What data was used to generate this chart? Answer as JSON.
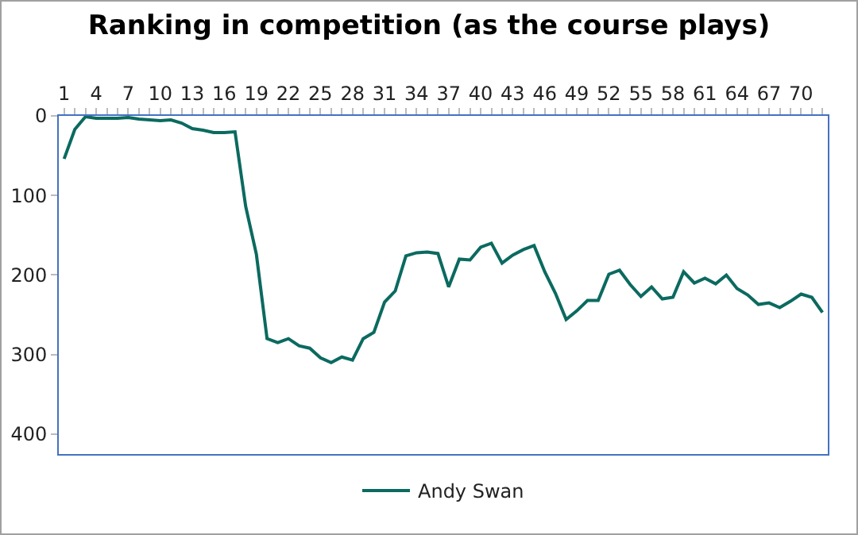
{
  "chart_data": {
    "type": "line",
    "title": "Ranking in competition (as the course plays)",
    "categories": [
      "1",
      null,
      null,
      "4",
      null,
      null,
      "7",
      null,
      null,
      "10",
      null,
      null,
      "13",
      null,
      null,
      "16",
      null,
      null,
      "19",
      null,
      null,
      "22",
      null,
      null,
      "25",
      null,
      null,
      "28",
      null,
      null,
      "31",
      null,
      null,
      "34",
      null,
      null,
      "37",
      null,
      null,
      "40",
      null,
      null,
      "43",
      null,
      null,
      "46",
      null,
      null,
      "49",
      null,
      null,
      "52",
      null,
      null,
      "55",
      null,
      null,
      "58",
      null,
      null,
      "61",
      null,
      null,
      "64",
      null,
      null,
      "67",
      null,
      null,
      "70",
      null,
      null
    ],
    "series": [
      {
        "name": "Andy Swan",
        "color": "#0b6a60",
        "values": [
          54,
          17,
          1,
          3,
          3,
          3,
          2,
          4,
          5,
          6,
          5,
          9,
          16,
          18,
          21,
          21,
          20,
          114,
          174,
          280,
          285,
          280,
          289,
          292,
          304,
          310,
          303,
          307,
          280,
          272,
          234,
          220,
          176,
          172,
          171,
          173,
          215,
          180,
          181,
          165,
          160,
          185,
          175,
          168,
          163,
          196,
          223,
          256,
          245,
          232,
          232,
          199,
          194,
          212,
          227,
          215,
          230,
          228,
          196,
          210,
          204,
          211,
          200,
          217,
          225,
          237,
          235,
          241,
          233,
          224,
          228,
          247
        ]
      }
    ],
    "ylim": [
      425,
      0
    ],
    "yticks": [
      0,
      100,
      200,
      300,
      400
    ],
    "grid": false,
    "legend": "bottom",
    "marker": "none",
    "line_style": "solid"
  }
}
